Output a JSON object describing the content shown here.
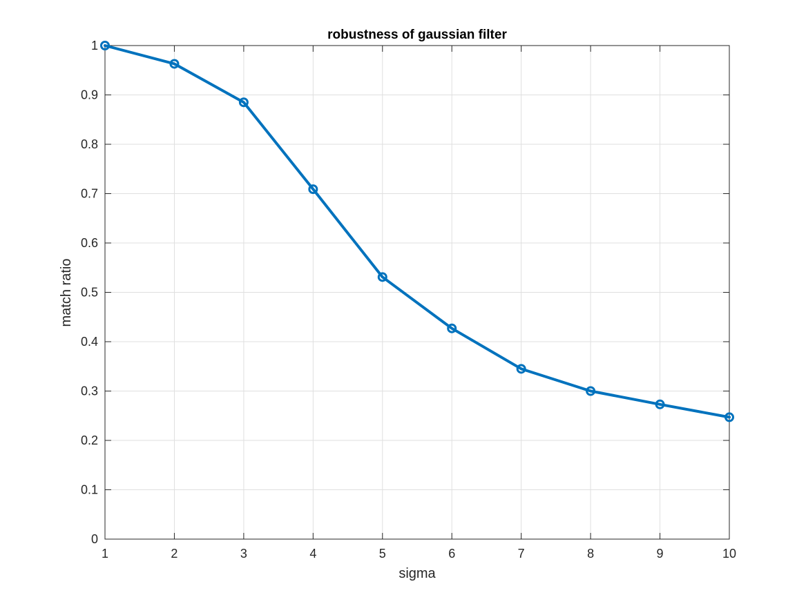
{
  "chart_data": {
    "type": "line",
    "title": "robustness of gaussian filter",
    "xlabel": "sigma",
    "ylabel": "match ratio",
    "x": [
      1,
      2,
      3,
      4,
      5,
      6,
      7,
      8,
      9,
      10
    ],
    "series": [
      {
        "values": [
          1.0,
          0.963,
          0.885,
          0.709,
          0.531,
          0.427,
          0.345,
          0.3,
          0.273,
          0.247
        ],
        "color": "#0072BD",
        "marker": "circle"
      }
    ],
    "xlim": [
      1,
      10
    ],
    "ylim": [
      0,
      1
    ],
    "xticks": [
      "1",
      "2",
      "3",
      "4",
      "5",
      "6",
      "7",
      "8",
      "9",
      "10"
    ],
    "yticks": [
      "0",
      "0.1",
      "0.2",
      "0.3",
      "0.4",
      "0.5",
      "0.6",
      "0.7",
      "0.8",
      "0.9",
      "1"
    ],
    "grid": true,
    "legend": "none"
  }
}
